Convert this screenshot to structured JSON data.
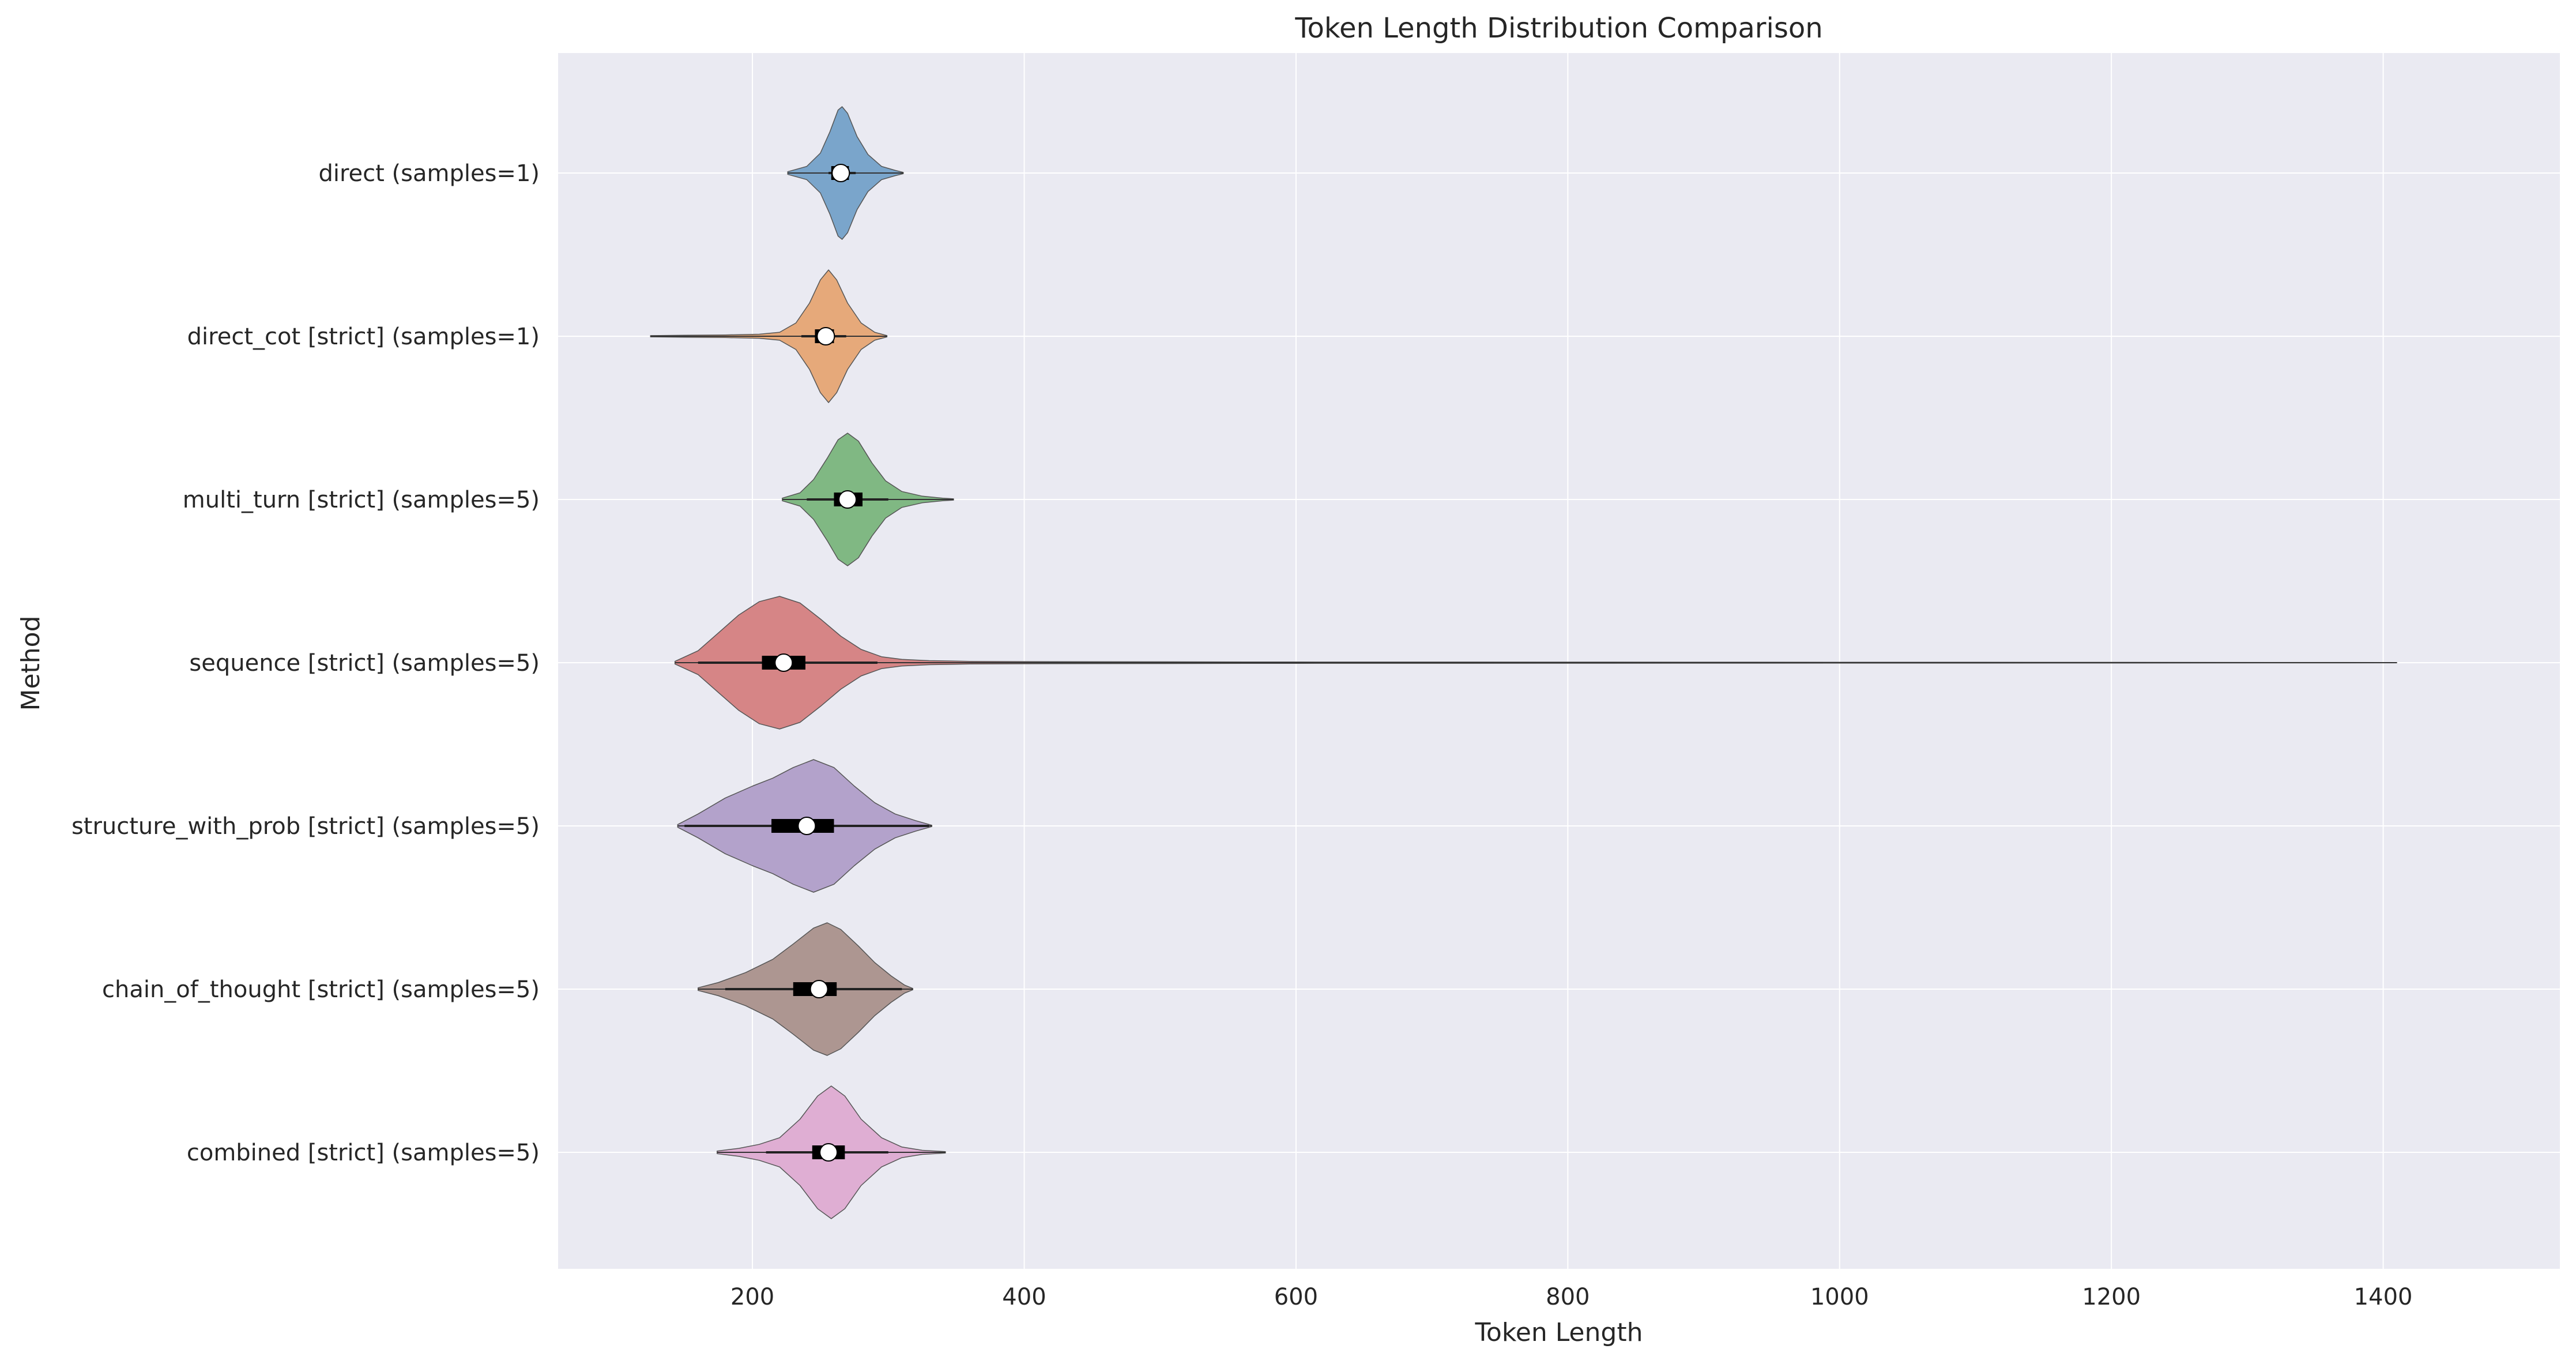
{
  "chart_data": {
    "type": "violin",
    "orientation": "horizontal",
    "title": "Token Length Distribution Comparison",
    "xlabel": "Token Length",
    "ylabel": "Method",
    "xlim": [
      57,
      1530
    ],
    "xticks": [
      200,
      400,
      600,
      800,
      1000,
      1200,
      1400
    ],
    "grid": true,
    "background": "#eaeaf2",
    "series": [
      {
        "name": "direct (samples=1)",
        "color": "#7aa5cb",
        "min": 226,
        "q1": 258,
        "median": 265,
        "q3": 271,
        "max": 311,
        "whisker_low": 256,
        "whisker_high": 276,
        "density": [
          [
            226,
            0.02
          ],
          [
            240,
            0.1
          ],
          [
            250,
            0.3
          ],
          [
            257,
            0.62
          ],
          [
            263,
            0.95
          ],
          [
            266,
            1.0
          ],
          [
            270,
            0.9
          ],
          [
            277,
            0.55
          ],
          [
            285,
            0.28
          ],
          [
            295,
            0.1
          ],
          [
            305,
            0.04
          ],
          [
            311,
            0.01
          ]
        ]
      },
      {
        "name": "direct_cot [strict] (samples=1)",
        "color": "#e6a97a",
        "min": 125,
        "q1": 246,
        "median": 254,
        "q3": 260,
        "max": 299,
        "whisker_low": 236,
        "whisker_high": 269,
        "density": [
          [
            125,
            0.01
          ],
          [
            150,
            0.015
          ],
          [
            180,
            0.02
          ],
          [
            205,
            0.03
          ],
          [
            220,
            0.06
          ],
          [
            232,
            0.2
          ],
          [
            242,
            0.5
          ],
          [
            250,
            0.85
          ],
          [
            256,
            1.0
          ],
          [
            262,
            0.85
          ],
          [
            270,
            0.5
          ],
          [
            280,
            0.2
          ],
          [
            290,
            0.06
          ],
          [
            299,
            0.01
          ]
        ]
      },
      {
        "name": "multi_turn [strict] (samples=5)",
        "color": "#80b883",
        "min": 222,
        "q1": 260,
        "median": 270,
        "q3": 281,
        "max": 348,
        "whisker_low": 240,
        "whisker_high": 300,
        "density": [
          [
            222,
            0.02
          ],
          [
            235,
            0.1
          ],
          [
            245,
            0.3
          ],
          [
            255,
            0.62
          ],
          [
            263,
            0.9
          ],
          [
            270,
            1.0
          ],
          [
            278,
            0.88
          ],
          [
            288,
            0.55
          ],
          [
            298,
            0.28
          ],
          [
            310,
            0.12
          ],
          [
            325,
            0.05
          ],
          [
            340,
            0.02
          ],
          [
            348,
            0.01
          ]
        ]
      },
      {
        "name": "sequence [strict] (samples=5)",
        "color": "#d68586",
        "min": 143,
        "q1": 207,
        "median": 223,
        "q3": 239,
        "max": 1410,
        "whisker_low": 160,
        "whisker_high": 292,
        "density": [
          [
            143,
            0.02
          ],
          [
            160,
            0.18
          ],
          [
            175,
            0.45
          ],
          [
            190,
            0.72
          ],
          [
            205,
            0.92
          ],
          [
            220,
            1.0
          ],
          [
            235,
            0.9
          ],
          [
            250,
            0.66
          ],
          [
            265,
            0.4
          ],
          [
            280,
            0.2
          ],
          [
            295,
            0.09
          ],
          [
            310,
            0.05
          ],
          [
            330,
            0.03
          ],
          [
            360,
            0.02
          ],
          [
            420,
            0.015
          ],
          [
            600,
            0.01
          ],
          [
            900,
            0.008
          ],
          [
            1200,
            0.005
          ],
          [
            1410,
            0.003
          ]
        ]
      },
      {
        "name": "structure_with_prob [strict] (samples=5)",
        "color": "#b3a2cb",
        "min": 145,
        "q1": 214,
        "median": 240,
        "q3": 260,
        "max": 332,
        "whisker_low": 150,
        "whisker_high": 330,
        "density": [
          [
            145,
            0.02
          ],
          [
            160,
            0.18
          ],
          [
            180,
            0.42
          ],
          [
            200,
            0.6
          ],
          [
            215,
            0.72
          ],
          [
            230,
            0.88
          ],
          [
            245,
            1.0
          ],
          [
            260,
            0.88
          ],
          [
            275,
            0.6
          ],
          [
            290,
            0.35
          ],
          [
            305,
            0.18
          ],
          [
            320,
            0.08
          ],
          [
            332,
            0.01
          ]
        ]
      },
      {
        "name": "chain_of_thought [strict] (samples=5)",
        "color": "#ad9691",
        "min": 160,
        "q1": 230,
        "median": 249,
        "q3": 262,
        "max": 318,
        "whisker_low": 180,
        "whisker_high": 310,
        "density": [
          [
            160,
            0.02
          ],
          [
            175,
            0.1
          ],
          [
            195,
            0.25
          ],
          [
            215,
            0.45
          ],
          [
            230,
            0.68
          ],
          [
            245,
            0.92
          ],
          [
            255,
            1.0
          ],
          [
            265,
            0.9
          ],
          [
            278,
            0.65
          ],
          [
            290,
            0.4
          ],
          [
            302,
            0.2
          ],
          [
            312,
            0.06
          ],
          [
            318,
            0.01
          ]
        ]
      },
      {
        "name": "combined [strict] (samples=5)",
        "color": "#dfaed3",
        "min": 174,
        "q1": 244,
        "median": 256,
        "q3": 268,
        "max": 342,
        "whisker_low": 210,
        "whisker_high": 300,
        "density": [
          [
            174,
            0.02
          ],
          [
            190,
            0.06
          ],
          [
            205,
            0.12
          ],
          [
            220,
            0.22
          ],
          [
            235,
            0.5
          ],
          [
            248,
            0.85
          ],
          [
            258,
            1.0
          ],
          [
            268,
            0.85
          ],
          [
            280,
            0.5
          ],
          [
            295,
            0.22
          ],
          [
            310,
            0.08
          ],
          [
            325,
            0.03
          ],
          [
            342,
            0.01
          ]
        ]
      }
    ]
  }
}
